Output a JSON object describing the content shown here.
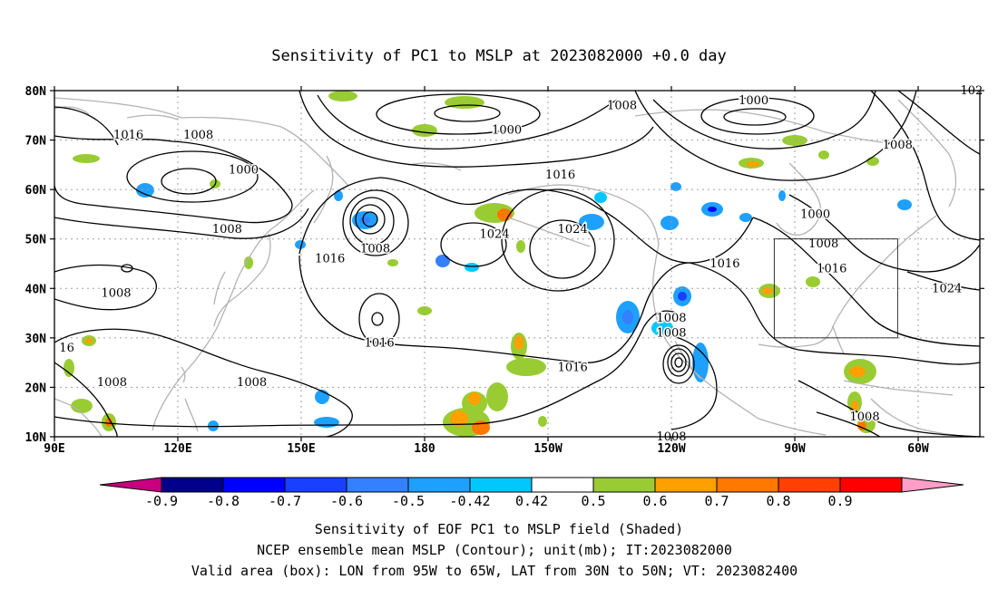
{
  "title": "Sensitivity of PC1 to MSLP at 2023082000 +0.0 day",
  "axes": {
    "lat_labels": [
      "80N",
      "70N",
      "60N",
      "50N",
      "40N",
      "30N",
      "20N",
      "10N"
    ],
    "lon_labels": [
      "90E",
      "120E",
      "150E",
      "180",
      "150W",
      "120W",
      "90W",
      "60W"
    ]
  },
  "map_extent": {
    "lon_min": 90,
    "lon_max": 315,
    "lat_min": 10,
    "lat_max": 80
  },
  "valid_box": {
    "lon_from": 265,
    "lon_to": 295,
    "lat_from": 30,
    "lat_to": 50
  },
  "contour_labels": [
    {
      "text": "1016",
      "lon": 108,
      "lat": 71
    },
    {
      "text": "1008",
      "lon": 125,
      "lat": 71
    },
    {
      "text": "1000",
      "lon": 136,
      "lat": 64
    },
    {
      "text": "1000",
      "lon": 200,
      "lat": 72
    },
    {
      "text": "1008",
      "lon": 228,
      "lat": 77
    },
    {
      "text": "1016",
      "lon": 213,
      "lat": 63
    },
    {
      "text": "1000",
      "lon": 260,
      "lat": 78
    },
    {
      "text": "1008",
      "lon": 295,
      "lat": 69
    },
    {
      "text": "1008",
      "lon": 132,
      "lat": 52
    },
    {
      "text": "1008",
      "lon": 168,
      "lat": 48
    },
    {
      "text": "1016",
      "lon": 157,
      "lat": 46
    },
    {
      "text": "1024",
      "lon": 197,
      "lat": 51
    },
    {
      "text": "1024",
      "lon": 216,
      "lat": 52
    },
    {
      "text": "1000",
      "lon": 275,
      "lat": 55
    },
    {
      "text": "1008",
      "lon": 277,
      "lat": 49
    },
    {
      "text": "1016",
      "lon": 279,
      "lat": 44
    },
    {
      "text": "1016",
      "lon": 253,
      "lat": 45
    },
    {
      "text": "1024",
      "lon": 307,
      "lat": 40
    },
    {
      "text": "1008",
      "lon": 105,
      "lat": 39
    },
    {
      "text": "1016",
      "lon": 169,
      "lat": 29
    },
    {
      "text": "1008",
      "lon": 240,
      "lat": 34
    },
    {
      "text": "1008",
      "lon": 240,
      "lat": 31
    },
    {
      "text": "1016",
      "lon": 216,
      "lat": 24
    },
    {
      "text": "1008",
      "lon": 104,
      "lat": 21
    },
    {
      "text": "1008",
      "lon": 138,
      "lat": 21
    },
    {
      "text": "1008",
      "lon": 287,
      "lat": 14
    },
    {
      "text": "1008",
      "lon": 240,
      "lat": 10
    },
    {
      "text": "16",
      "lon": 93,
      "lat": 28
    },
    {
      "text": "102",
      "lon": 313,
      "lat": 80
    }
  ],
  "colorbar": {
    "labels": [
      "-0.9",
      "-0.8",
      "-0.7",
      "-0.6",
      "-0.5",
      "-0.42",
      "0.42",
      "0.5",
      "0.6",
      "0.7",
      "0.8",
      "0.9"
    ],
    "low_end_color": "#c8007f",
    "colors": [
      "#00008c",
      "#0000ff",
      "#1a40ff",
      "#3480ff",
      "#1ea0ff",
      "#00c8ff",
      "#ffffff",
      "#99cc33",
      "#ffa000",
      "#ff7800",
      "#ff4000",
      "#ff0000"
    ],
    "high_end_color": "#ff9fc8"
  },
  "captions": [
    "Sensitivity of EOF PC1 to MSLP field (Shaded)",
    "NCEP ensemble mean MSLP (Contour); unit(mb); IT:2023082000",
    "Valid area (box): LON from 95W to 65W, LAT from 30N to 50N; VT: 2023082400"
  ],
  "colors": {
    "coastline": "#b3b3b3",
    "contour": "#000000",
    "grid": "#a0a0a0",
    "negative_blue": "#1ea0ff",
    "positive_green": "#99cc33",
    "positive_orange": "#ff7800"
  }
}
